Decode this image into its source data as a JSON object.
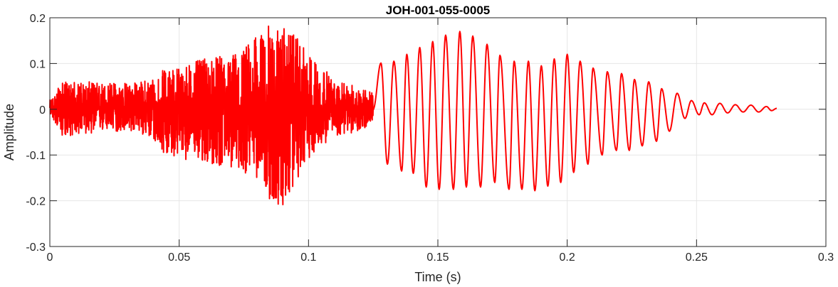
{
  "chart_data": {
    "type": "line",
    "title": "JOH-001-055-0005",
    "xlabel": "Time (s)",
    "ylabel": "Amplitude",
    "xlim": [
      0,
      0.3
    ],
    "ylim": [
      -0.3,
      0.2
    ],
    "grid": true,
    "x_ticks": [
      0,
      0.05,
      0.1,
      0.15,
      0.2,
      0.25,
      0.3
    ],
    "x_tick_labels": [
      "0",
      "0.05",
      "0.1",
      "0.15",
      "0.2",
      "0.25",
      "0.3"
    ],
    "y_ticks": [
      -0.3,
      -0.2,
      -0.1,
      0,
      0.1,
      0.2
    ],
    "y_tick_labels": [
      "-0.3",
      "-0.2",
      "-0.1",
      "0",
      "0.1",
      "0.2"
    ],
    "series": [
      {
        "color": "#ff0000",
        "x_range": [
          0,
          0.281
        ],
        "envelope": {
          "t": [
            0,
            0.005,
            0.02,
            0.035,
            0.045,
            0.06,
            0.07,
            0.08,
            0.085,
            0.09,
            0.095,
            0.1,
            0.105,
            0.11,
            0.12,
            0.124
          ],
          "upper": [
            0.02,
            0.06,
            0.06,
            0.06,
            0.09,
            0.11,
            0.12,
            0.16,
            0.185,
            0.18,
            0.16,
            0.12,
            0.1,
            0.06,
            0.05,
            0.04
          ],
          "lower": [
            -0.01,
            -0.06,
            -0.05,
            -0.05,
            -0.1,
            -0.12,
            -0.13,
            -0.15,
            -0.2,
            -0.23,
            -0.16,
            -0.11,
            -0.08,
            -0.06,
            -0.05,
            -0.03
          ]
        },
        "oscillation": {
          "start": 0.125,
          "period": 0.0052,
          "peaks": [
            [
              0.128,
              0.101
            ],
            [
              0.133,
              0.105
            ],
            [
              0.138,
              0.12
            ],
            [
              0.143,
              0.135
            ],
            [
              0.148,
              0.148
            ],
            [
              0.153,
              0.162
            ],
            [
              0.1585,
              0.17
            ],
            [
              0.1635,
              0.16
            ],
            [
              0.169,
              0.142
            ],
            [
              0.174,
              0.118
            ],
            [
              0.1795,
              0.105
            ],
            [
              0.185,
              0.105
            ],
            [
              0.19,
              0.095
            ],
            [
              0.195,
              0.11
            ],
            [
              0.2,
              0.12
            ],
            [
              0.205,
              0.105
            ],
            [
              0.21,
              0.09
            ],
            [
              0.2155,
              0.082
            ],
            [
              0.221,
              0.078
            ],
            [
              0.226,
              0.065
            ],
            [
              0.2315,
              0.06
            ],
            [
              0.2365,
              0.045
            ],
            [
              0.2425,
              0.035
            ],
            [
              0.248,
              0.019
            ],
            [
              0.253,
              0.014
            ],
            [
              0.259,
              0.013
            ],
            [
              0.265,
              0.01
            ],
            [
              0.271,
              0.009
            ],
            [
              0.277,
              0.006
            ],
            [
              0.281,
              0.002
            ]
          ],
          "troughs": [
            [
              0.1305,
              -0.12
            ],
            [
              0.136,
              -0.135
            ],
            [
              0.1405,
              -0.14
            ],
            [
              0.1455,
              -0.17
            ],
            [
              0.1505,
              -0.175
            ],
            [
              0.156,
              -0.175
            ],
            [
              0.161,
              -0.17
            ],
            [
              0.1665,
              -0.17
            ],
            [
              0.172,
              -0.16
            ],
            [
              0.1775,
              -0.175
            ],
            [
              0.1825,
              -0.175
            ],
            [
              0.1875,
              -0.178
            ],
            [
              0.1925,
              -0.168
            ],
            [
              0.1975,
              -0.16
            ],
            [
              0.2025,
              -0.138
            ],
            [
              0.208,
              -0.12
            ],
            [
              0.2135,
              -0.1
            ],
            [
              0.219,
              -0.09
            ],
            [
              0.224,
              -0.09
            ],
            [
              0.229,
              -0.08
            ],
            [
              0.2345,
              -0.07
            ],
            [
              0.2395,
              -0.048
            ],
            [
              0.2455,
              -0.02
            ],
            [
              0.251,
              -0.012
            ],
            [
              0.256,
              -0.012
            ],
            [
              0.262,
              -0.008
            ],
            [
              0.268,
              -0.006
            ],
            [
              0.274,
              -0.006
            ],
            [
              0.279,
              -0.003
            ]
          ]
        }
      }
    ]
  }
}
